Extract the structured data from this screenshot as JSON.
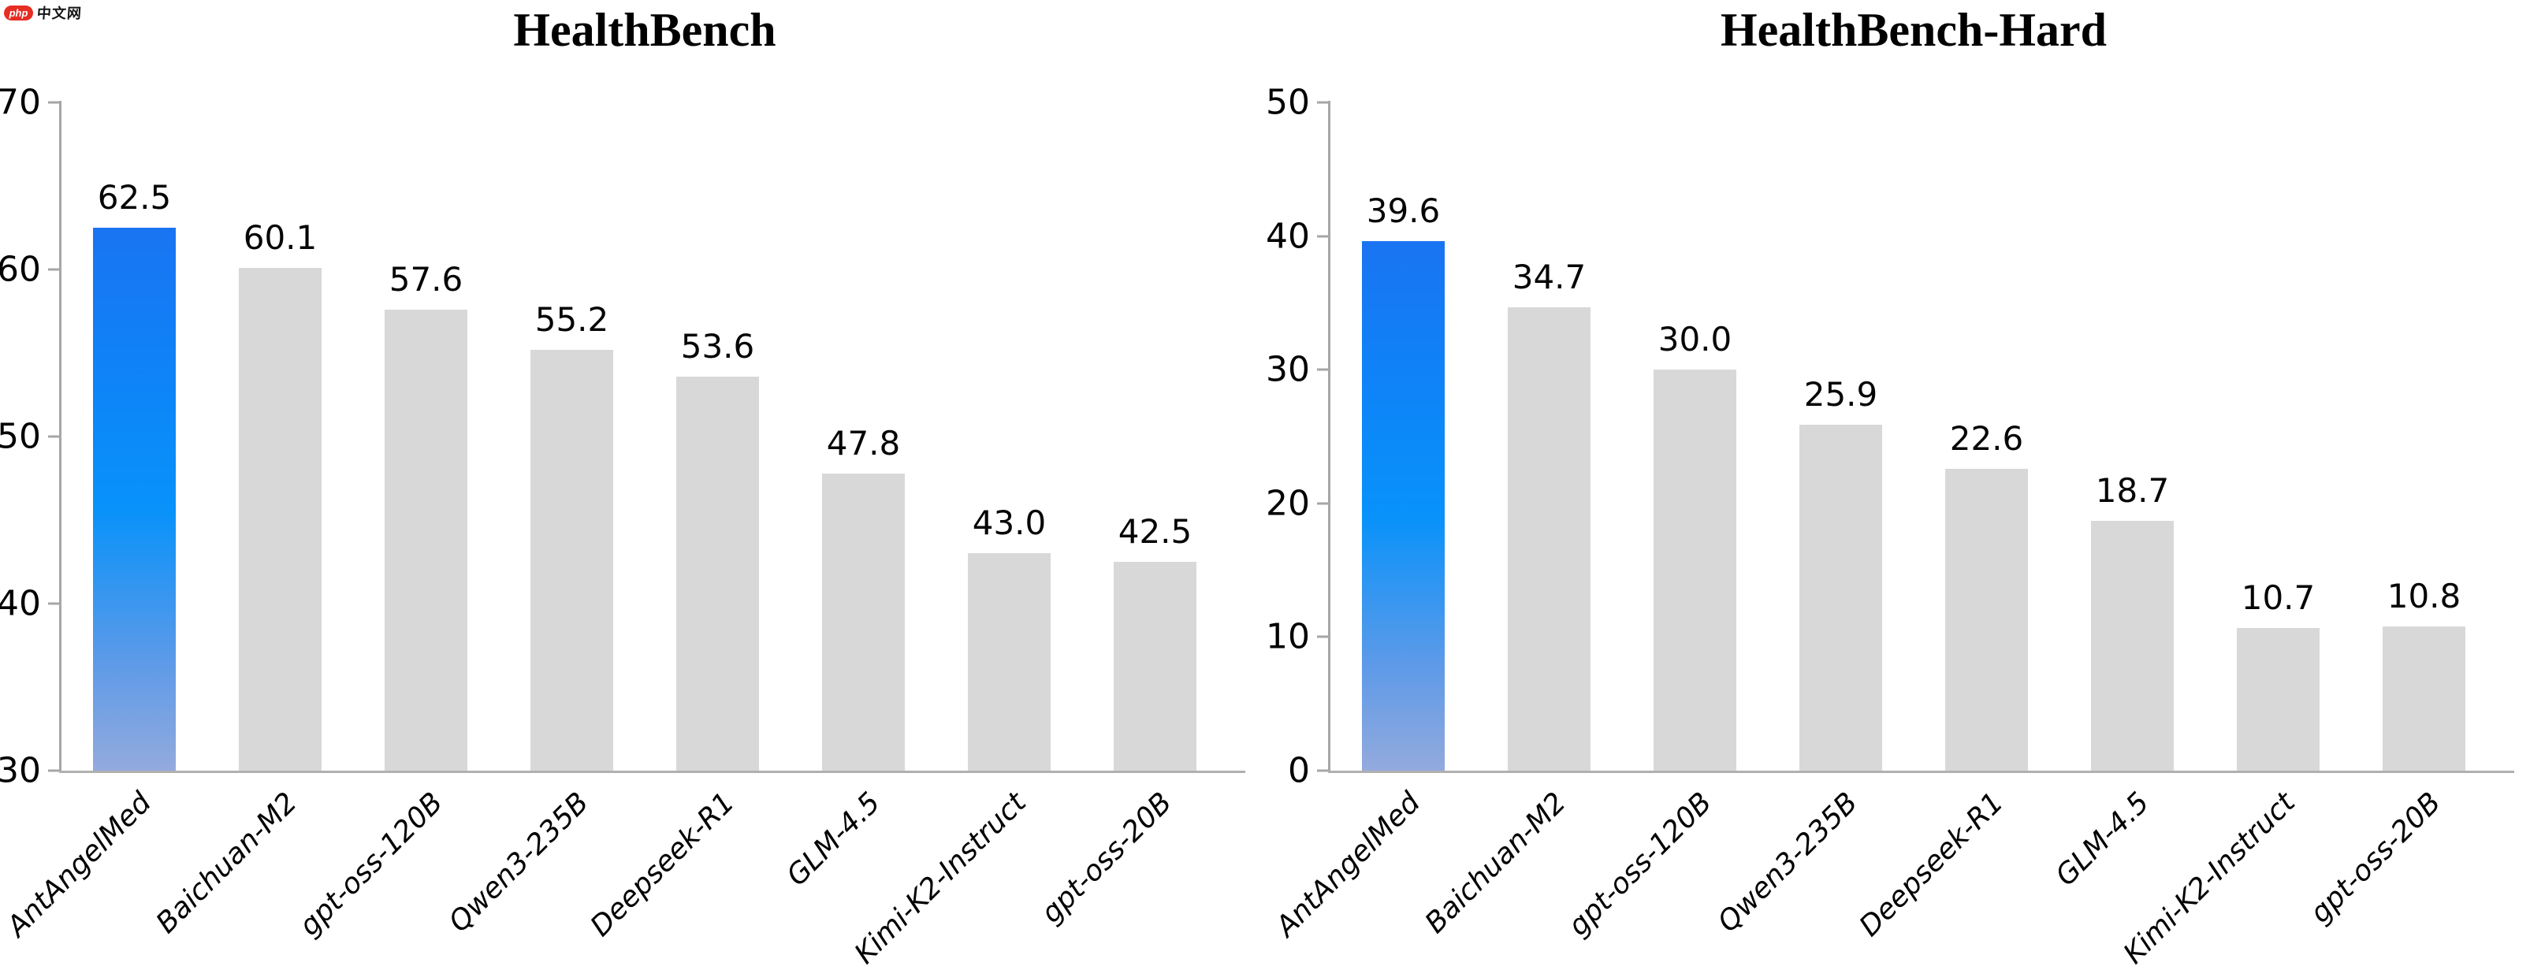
{
  "watermark": {
    "badge_text": "php",
    "site_text": "中文网",
    "badge_color": "#e62e24"
  },
  "colors": {
    "highlight_bar_top": "#1a74f2",
    "highlight_bar_mid": "#0892fa",
    "highlight_bar_bottom": "#93aadd",
    "default_bar": "#d8d8d8",
    "axis_line": "#a6a6a6",
    "text": "#000000"
  },
  "chart_data": [
    {
      "type": "bar",
      "title": "HealthBench",
      "categories": [
        "AntAngelMed",
        "Baichuan-M2",
        "gpt-oss-120B",
        "Qwen3-235B",
        "Deepseek-R1",
        "GLM-4.5",
        "Kimi-K2-Instruct",
        "gpt-oss-20B"
      ],
      "values": [
        62.5,
        60.1,
        57.6,
        55.2,
        53.6,
        47.8,
        43.0,
        42.5
      ],
      "value_labels": [
        "62.5",
        "60.1",
        "57.6",
        "55.2",
        "53.6",
        "47.8",
        "43.0",
        "42.5"
      ],
      "ylim": [
        30,
        70
      ],
      "yticks": [
        30,
        40,
        50,
        60,
        70
      ],
      "highlight_index": 0,
      "grid": false,
      "legend": "none"
    },
    {
      "type": "bar",
      "title": "HealthBench-Hard",
      "categories": [
        "AntAngelMed",
        "Baichuan-M2",
        "gpt-oss-120B",
        "Qwen3-235B",
        "Deepseek-R1",
        "GLM-4.5",
        "Kimi-K2-Instruct",
        "gpt-oss-20B"
      ],
      "values": [
        39.6,
        34.7,
        30.0,
        25.9,
        22.6,
        18.7,
        10.7,
        10.8
      ],
      "value_labels": [
        "39.6",
        "34.7",
        "30.0",
        "25.9",
        "22.6",
        "18.7",
        "10.7",
        "10.8"
      ],
      "ylim": [
        0,
        50
      ],
      "yticks": [
        0,
        10,
        20,
        30,
        40,
        50
      ],
      "highlight_index": 0,
      "grid": false,
      "legend": "none"
    }
  ]
}
